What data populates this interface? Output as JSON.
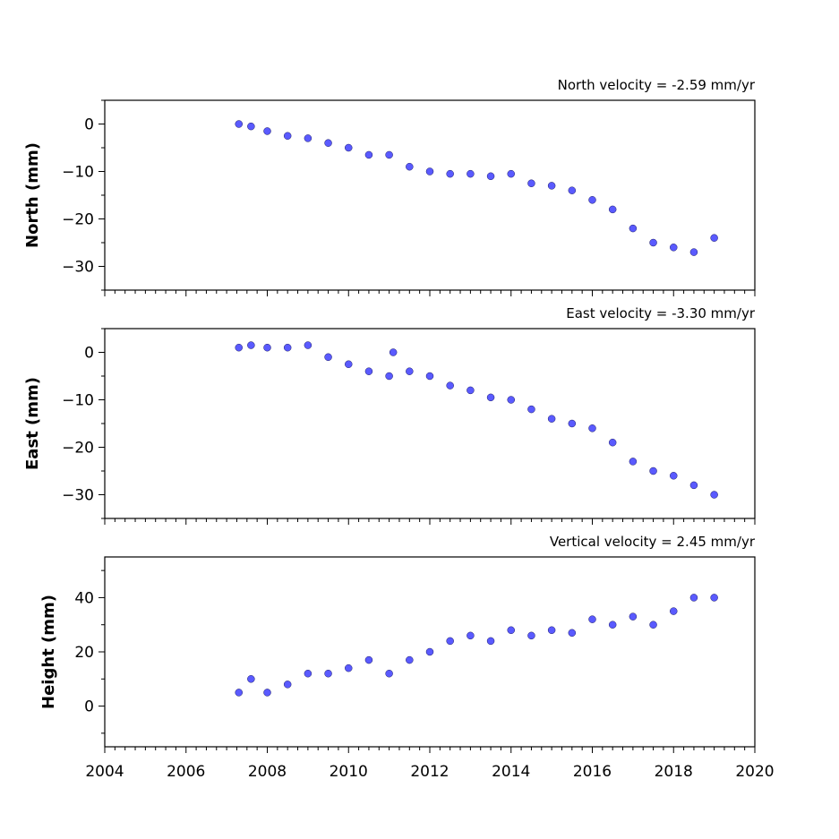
{
  "figure": {
    "colors": {
      "marker_fill": "#5a5aff",
      "marker_edge": "#1a1a66",
      "axis": "#000000"
    }
  },
  "chart_data": [
    {
      "type": "scatter",
      "title": "North velocity = -2.59 mm/yr",
      "ylabel": "North (mm)",
      "xlabel": "",
      "xlim": [
        2004,
        2020
      ],
      "ylim": [
        -35,
        5
      ],
      "xticks": [
        2004,
        2006,
        2008,
        2010,
        2012,
        2014,
        2016,
        2018,
        2020
      ],
      "xtick_labels_shown": false,
      "yticks": [
        0,
        -10,
        -20,
        -30
      ],
      "ytick_labels": [
        "0",
        "−10",
        "−20",
        "−30"
      ],
      "grid": false,
      "series": [
        {
          "x": [
            2007.3,
            2007.6,
            2008.0,
            2008.5,
            2009.0,
            2009.5,
            2010.0,
            2010.5,
            2011.0,
            2011.5,
            2012.0,
            2012.5,
            2013.0,
            2013.5,
            2014.0,
            2014.5,
            2015.0,
            2015.5,
            2016.0,
            2016.5,
            2017.0,
            2017.5,
            2018.0,
            2018.5,
            2019.0
          ],
          "y": [
            0,
            -0.5,
            -1.5,
            -2.5,
            -3,
            -4,
            -5,
            -6.5,
            -6.5,
            -9,
            -10,
            -10.5,
            -10.5,
            -11,
            -10.5,
            -12.5,
            -13,
            -14,
            -16,
            -18,
            -22,
            -25,
            -26,
            -27,
            -24
          ]
        }
      ]
    },
    {
      "type": "scatter",
      "title": "East velocity = -3.30 mm/yr",
      "ylabel": "East (mm)",
      "xlabel": "",
      "xlim": [
        2004,
        2020
      ],
      "ylim": [
        -35,
        5
      ],
      "xticks": [
        2004,
        2006,
        2008,
        2010,
        2012,
        2014,
        2016,
        2018,
        2020
      ],
      "xtick_labels_shown": false,
      "yticks": [
        0,
        -10,
        -20,
        -30
      ],
      "ytick_labels": [
        "0",
        "−10",
        "−20",
        "−30"
      ],
      "grid": false,
      "series": [
        {
          "x": [
            2007.3,
            2007.6,
            2008.0,
            2008.5,
            2009.0,
            2009.5,
            2010.0,
            2010.5,
            2011.0,
            2011.1,
            2011.5,
            2012.0,
            2012.5,
            2013.0,
            2013.5,
            2014.0,
            2014.5,
            2015.0,
            2015.5,
            2016.0,
            2016.5,
            2017.0,
            2017.5,
            2018.0,
            2018.5,
            2019.0
          ],
          "y": [
            1,
            1.5,
            1,
            1,
            1.5,
            -1,
            -2.5,
            -4,
            -5,
            0,
            -4,
            -5,
            -7,
            -8,
            -9.5,
            -10,
            -12,
            -14,
            -15,
            -16,
            -19,
            -23,
            -25,
            -26,
            -28,
            -30
          ]
        }
      ]
    },
    {
      "type": "scatter",
      "title": "Vertical velocity = 2.45 mm/yr",
      "ylabel": "Height (mm)",
      "xlabel": "",
      "xlim": [
        2004,
        2020
      ],
      "ylim": [
        -15,
        55
      ],
      "xticks": [
        2004,
        2006,
        2008,
        2010,
        2012,
        2014,
        2016,
        2018,
        2020
      ],
      "xtick_labels": [
        "2004",
        "2006",
        "2008",
        "2010",
        "2012",
        "2014",
        "2016",
        "2018",
        "2020"
      ],
      "xtick_labels_shown": true,
      "yticks": [
        0,
        20,
        40
      ],
      "ytick_labels": [
        "0",
        "20",
        "40"
      ],
      "grid": false,
      "series": [
        {
          "x": [
            2007.3,
            2007.6,
            2008.0,
            2008.5,
            2009.0,
            2009.5,
            2010.0,
            2010.5,
            2011.0,
            2011.5,
            2012.0,
            2012.5,
            2013.0,
            2013.5,
            2014.0,
            2014.5,
            2015.0,
            2015.5,
            2016.0,
            2016.5,
            2017.0,
            2017.5,
            2018.0,
            2018.5,
            2019.0
          ],
          "y": [
            5,
            10,
            5,
            8,
            12,
            12,
            14,
            17,
            12,
            17,
            20,
            24,
            26,
            24,
            28,
            26,
            28,
            27,
            32,
            30,
            33,
            30,
            35,
            40,
            40
          ]
        }
      ]
    }
  ]
}
